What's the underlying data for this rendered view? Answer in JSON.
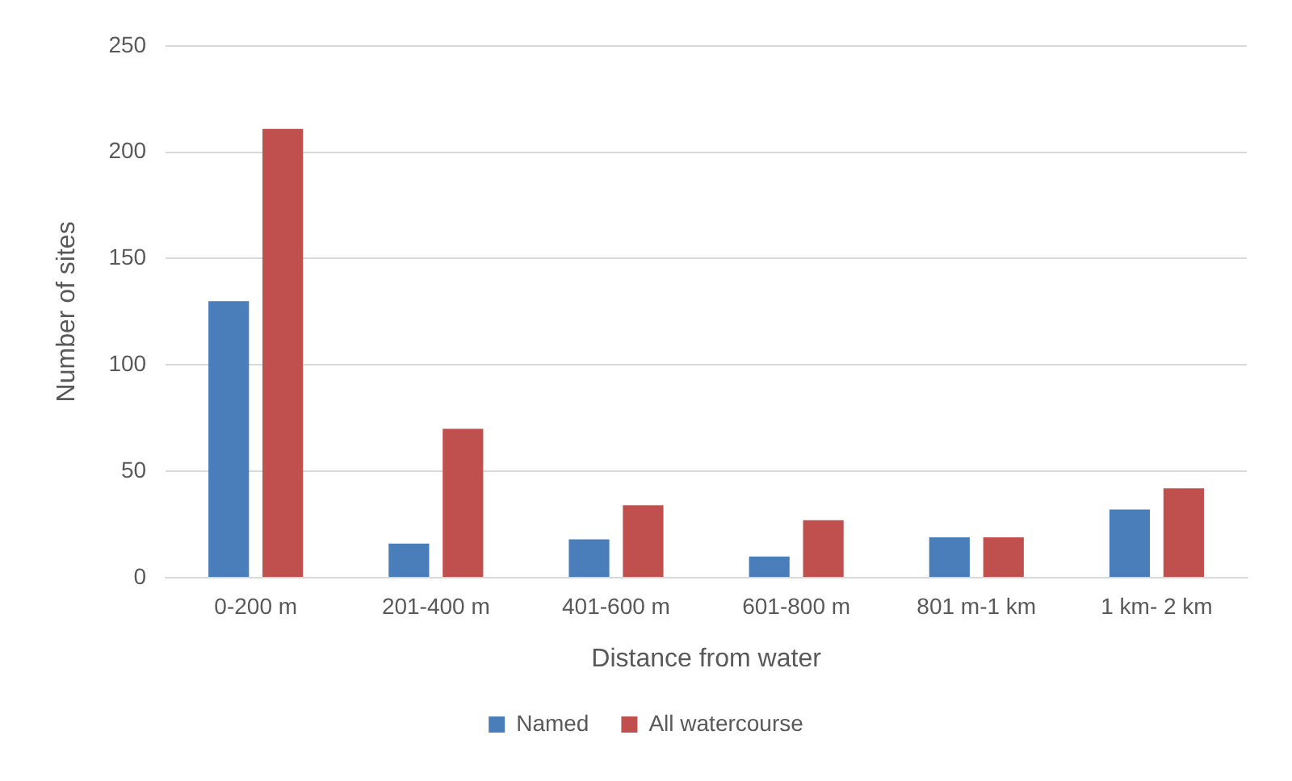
{
  "chart_data": {
    "type": "bar",
    "xlabel": "Distance from water",
    "ylabel": "Number of sites",
    "categories": [
      "0-200 m",
      "201-400 m",
      "401-600 m",
      "601-800 m",
      "801 m-1 km",
      "1 km- 2 km"
    ],
    "series": [
      {
        "name": "Named",
        "color": "#4a7ebb",
        "values": [
          130,
          16,
          18,
          10,
          19,
          32
        ]
      },
      {
        "name": "All watercourse",
        "color": "#c0504d",
        "values": [
          211,
          70,
          34,
          27,
          19,
          42
        ]
      }
    ],
    "ylim": [
      0,
      250
    ],
    "yticks": [
      0,
      50,
      100,
      150,
      200,
      250
    ],
    "grid": "y",
    "legend": "bottom"
  }
}
